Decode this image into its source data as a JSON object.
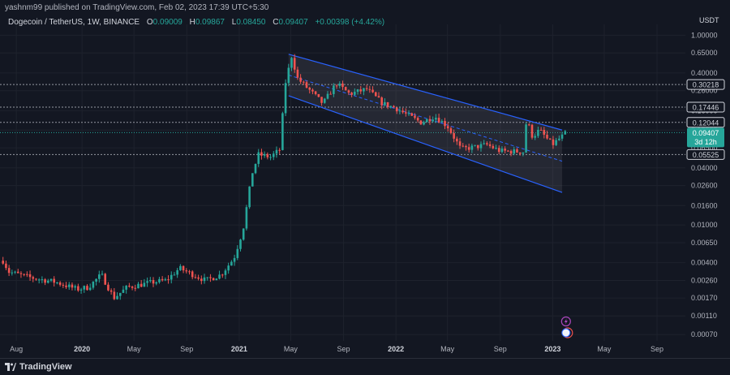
{
  "header": {
    "publisher": "yashnm99 published on TradingView.com, Feb 02, 2023 17:39 UTC+5:30"
  },
  "symbol": {
    "name": "Dogecoin / TetherUS, 1W, BINANCE",
    "open_label": "O",
    "open": "0.09009",
    "high_label": "H",
    "high": "0.09867",
    "low_label": "L",
    "low": "0.08450",
    "close_label": "C",
    "close": "0.09407",
    "change": "+0.00398 (+4.42%)"
  },
  "axis": {
    "currency": "USDT",
    "y_ticks": [
      "1.00000",
      "0.65000",
      "0.40000",
      "0.26000",
      "0.16000",
      "0.10000",
      "0.06500",
      "0.04000",
      "0.02600",
      "0.01600",
      "0.01000",
      "0.00650",
      "0.00400",
      "0.00260",
      "0.00170",
      "0.00110",
      "0.00070"
    ],
    "x_ticks": [
      "Aug",
      "2020",
      "May",
      "Sep",
      "2021",
      "May",
      "Sep",
      "2022",
      "May",
      "Sep",
      "2023",
      "May",
      "Sep"
    ]
  },
  "price_levels": [
    "0.30218",
    "0.17446",
    "0.12044",
    "0.05525"
  ],
  "current_price": {
    "price": "0.09407",
    "countdown": "3d 12h"
  },
  "colors": {
    "up": "#26a69a",
    "down": "#ef5350",
    "channel": "#2962ff",
    "level_line": "#9598a1",
    "background": "#131722",
    "grid": "#1e222d"
  },
  "chart_data": {
    "type": "candlestick",
    "title": "",
    "y_scale": "log",
    "ylim": [
      0.0006,
      1.3
    ],
    "x_range": [
      "2019-06-24",
      "2023-11-06"
    ],
    "horizontal_levels": [
      0.30218,
      0.17446,
      0.12044,
      0.05525
    ],
    "channel": {
      "upper": [
        [
          "2021-04-26",
          0.63
        ],
        [
          "2023-01-23",
          0.1
        ]
      ],
      "lower": [
        [
          "2021-04-26",
          0.23
        ],
        [
          "2023-01-23",
          0.022
        ]
      ],
      "mid_dashed": [
        [
          "2021-04-26",
          0.38
        ],
        [
          "2023-01-23",
          0.047
        ]
      ]
    },
    "weekly_close_path": [
      [
        "2019-07-01",
        0.0042
      ],
      [
        "2019-07-15",
        0.0032
      ],
      [
        "2019-09-01",
        0.0028
      ],
      [
        "2019-11-01",
        0.0025
      ],
      [
        "2019-12-20",
        0.0021
      ],
      [
        "2020-01-15",
        0.0022
      ],
      [
        "2020-02-15",
        0.003
      ],
      [
        "2020-03-15",
        0.0017
      ],
      [
        "2020-04-15",
        0.0022
      ],
      [
        "2020-06-15",
        0.0025
      ],
      [
        "2020-07-15",
        0.0026
      ],
      [
        "2020-08-15",
        0.0035
      ],
      [
        "2020-09-15",
        0.003
      ],
      [
        "2020-10-15",
        0.0026
      ],
      [
        "2020-11-20",
        0.003
      ],
      [
        "2020-12-20",
        0.0045
      ],
      [
        "2021-01-10",
        0.009
      ],
      [
        "2021-01-31",
        0.035
      ],
      [
        "2021-02-15",
        0.055
      ],
      [
        "2021-03-15",
        0.052
      ],
      [
        "2021-04-05",
        0.062
      ],
      [
        "2021-04-19",
        0.32
      ],
      [
        "2021-05-03",
        0.6
      ],
      [
        "2021-05-17",
        0.35
      ],
      [
        "2021-06-15",
        0.26
      ],
      [
        "2021-07-15",
        0.19
      ],
      [
        "2021-08-15",
        0.31
      ],
      [
        "2021-09-15",
        0.24
      ],
      [
        "2021-10-25",
        0.27
      ],
      [
        "2021-12-01",
        0.19
      ],
      [
        "2022-01-01",
        0.17
      ],
      [
        "2022-02-01",
        0.14
      ],
      [
        "2022-03-01",
        0.12
      ],
      [
        "2022-04-01",
        0.14
      ],
      [
        "2022-05-01",
        0.11
      ],
      [
        "2022-06-01",
        0.063
      ],
      [
        "2022-07-01",
        0.066
      ],
      [
        "2022-08-01",
        0.07
      ],
      [
        "2022-09-01",
        0.06
      ],
      [
        "2022-10-25",
        0.059
      ],
      [
        "2022-11-01",
        0.13
      ],
      [
        "2022-11-15",
        0.085
      ],
      [
        "2022-12-01",
        0.1
      ],
      [
        "2022-12-31",
        0.07
      ],
      [
        "2023-01-23",
        0.086
      ],
      [
        "2023-02-02",
        0.094
      ]
    ]
  }
}
